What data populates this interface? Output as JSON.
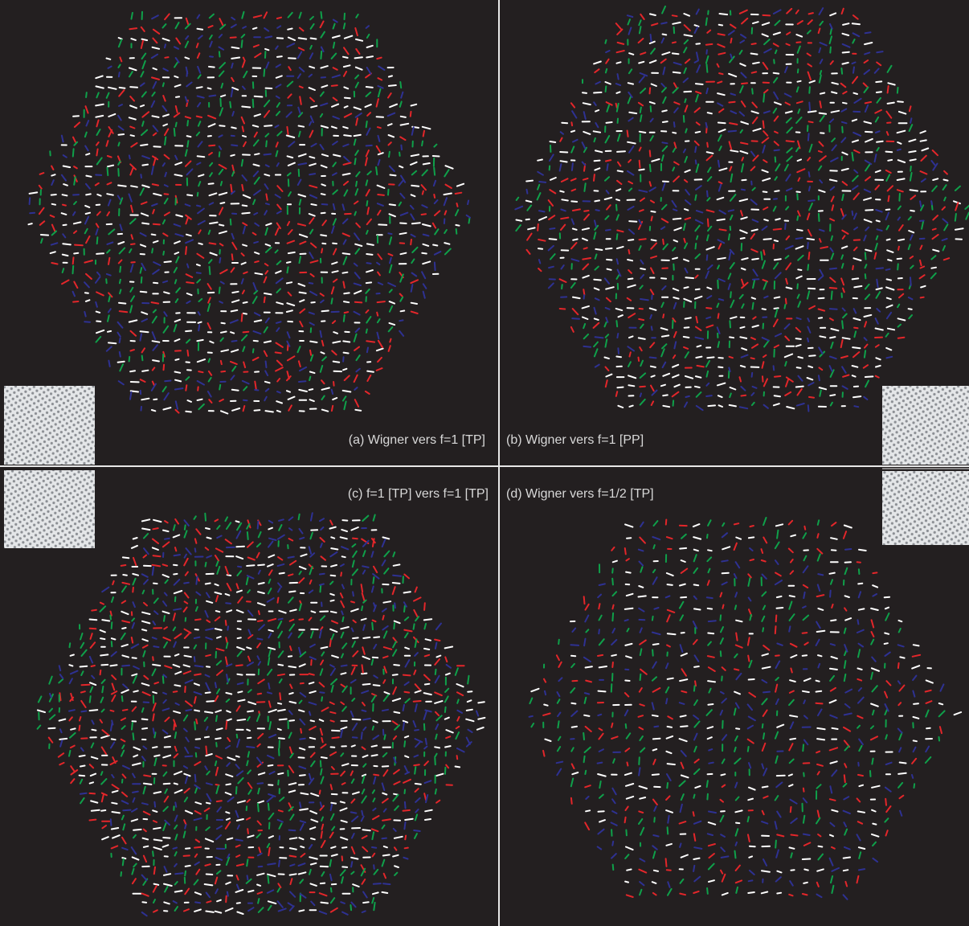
{
  "panels": [
    {
      "label": "(a) Wigner vers f=1 [TP]"
    },
    {
      "label": "(b) Wigner vers f=1 [PP]"
    },
    {
      "label": "(c) f=1 [TP] vers f=1 [TP]"
    },
    {
      "label": "(d) Wigner vers f=1/2 [TP]"
    }
  ]
}
